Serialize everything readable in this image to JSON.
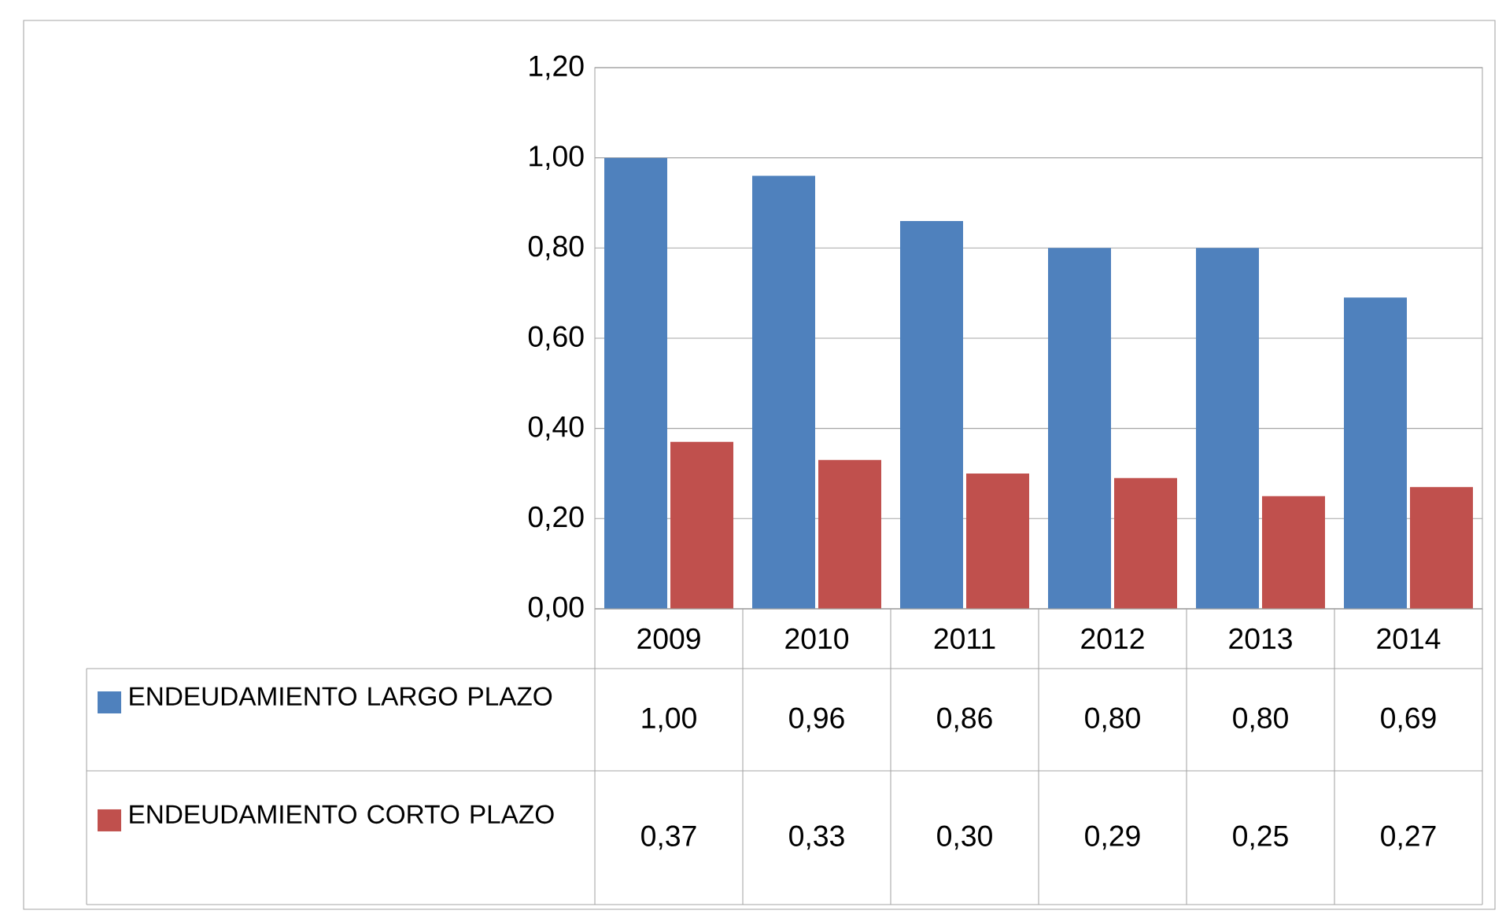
{
  "chart_data": {
    "type": "bar",
    "categories": [
      "2009",
      "2010",
      "2011",
      "2012",
      "2013",
      "2014"
    ],
    "series": [
      {
        "name": "ENDEUDAMIENTO LARGO PLAZO",
        "color": "#4f81bd",
        "values": [
          1.0,
          0.96,
          0.86,
          0.8,
          0.8,
          0.69
        ],
        "value_labels": [
          "1,00",
          "0,96",
          "0,86",
          "0,80",
          "0,80",
          "0,69"
        ]
      },
      {
        "name": "ENDEUDAMIENTO CORTO PLAZO",
        "color": "#c0504d",
        "values": [
          0.37,
          0.33,
          0.3,
          0.29,
          0.25,
          0.27
        ],
        "value_labels": [
          "0,37",
          "0,33",
          "0,30",
          "0,29",
          "0,25",
          "0,27"
        ]
      }
    ],
    "ylim": [
      0,
      1.2
    ],
    "yticks": [
      {
        "value": 0,
        "label": "0,00"
      },
      {
        "value": 0.2,
        "label": "0,20"
      },
      {
        "value": 0.4,
        "label": "0,40"
      },
      {
        "value": 0.6,
        "label": "0,60"
      },
      {
        "value": 0.8,
        "label": "0,80"
      },
      {
        "value": 1.0,
        "label": "1,00"
      },
      {
        "value": 1.2,
        "label": "1,20"
      }
    ],
    "grid": "y",
    "legend": "bottom"
  }
}
